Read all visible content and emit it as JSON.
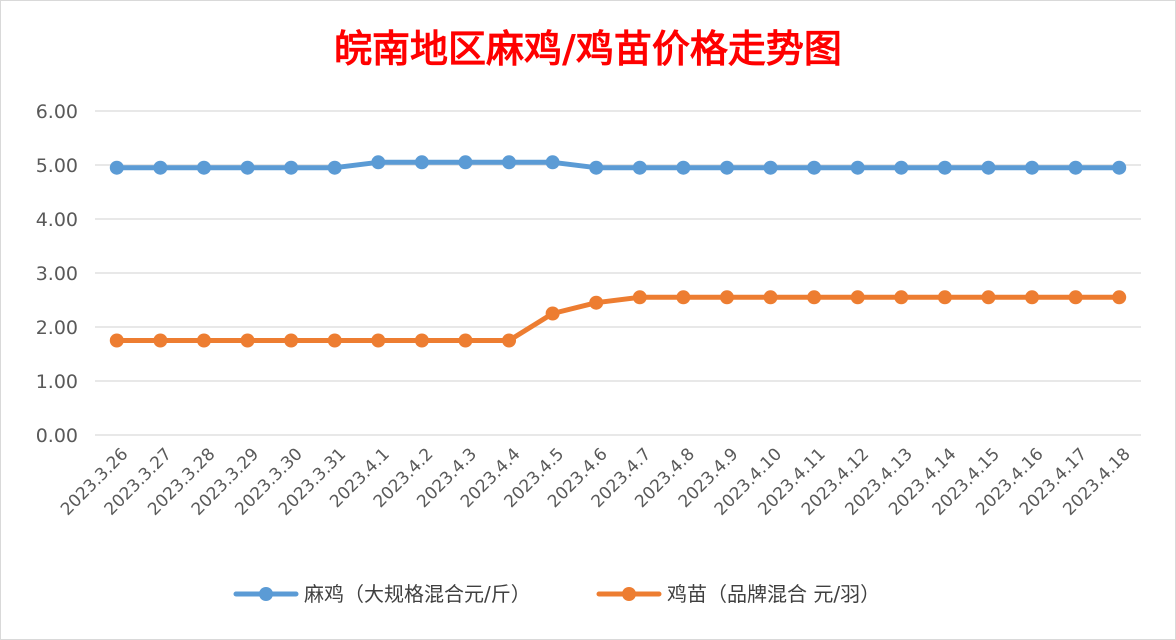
{
  "chart_data": {
    "type": "line",
    "title": "皖南地区麻鸡/鸡苗价格走势图",
    "categories": [
      "2023.3.26",
      "2023.3.27",
      "2023.3.28",
      "2023.3.29",
      "2023.3.30",
      "2023.3.31",
      "2023.4.1",
      "2023.4.2",
      "2023.4.3",
      "2023.4.4",
      "2023.4.5",
      "2023.4.6",
      "2023.4.7",
      "2023.4.8",
      "2023.4.9",
      "2023.4.10",
      "2023.4.11",
      "2023.4.12",
      "2023.4.13",
      "2023.4.14",
      "2023.4.15",
      "2023.4.16",
      "2023.4.17",
      "2023.4.18"
    ],
    "series": [
      {
        "name": "麻鸡（大规格混合元/斤）",
        "color": "#5b9bd5",
        "values": [
          4.95,
          4.95,
          4.95,
          4.95,
          4.95,
          4.95,
          5.05,
          5.05,
          5.05,
          5.05,
          5.05,
          4.95,
          4.95,
          4.95,
          4.95,
          4.95,
          4.95,
          4.95,
          4.95,
          4.95,
          4.95,
          4.95,
          4.95,
          4.95
        ]
      },
      {
        "name": "鸡苗（品牌混合 元/羽）",
        "color": "#ed7d31",
        "values": [
          1.75,
          1.75,
          1.75,
          1.75,
          1.75,
          1.75,
          1.75,
          1.75,
          1.75,
          1.75,
          2.25,
          2.45,
          2.55,
          2.55,
          2.55,
          2.55,
          2.55,
          2.55,
          2.55,
          2.55,
          2.55,
          2.55,
          2.55,
          2.55
        ]
      }
    ],
    "yticks": [
      "0.00",
      "1.00",
      "2.00",
      "3.00",
      "4.00",
      "5.00",
      "6.00"
    ],
    "ylim": [
      0,
      6
    ],
    "xlabel": "",
    "ylabel": "",
    "grid": true,
    "legend": "bottom"
  }
}
